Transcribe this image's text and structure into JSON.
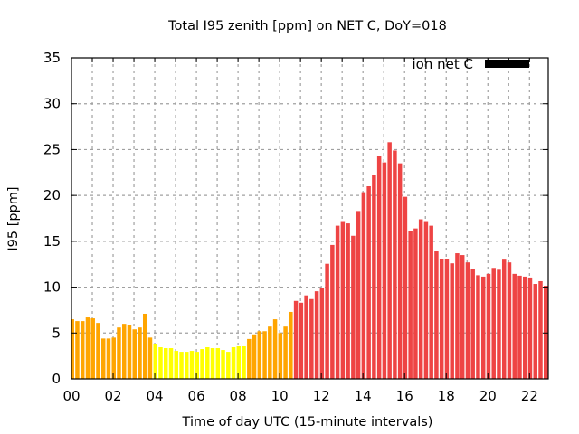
{
  "chart_data": {
    "type": "bar",
    "title": "Total I95 zenith [ppm] on NET C, DoY=018",
    "xlabel": "Time of day UTC (15-minute intervals)",
    "ylabel": "I95 [ppm]",
    "xlim": [
      0,
      22.9
    ],
    "ylim": [
      0,
      35
    ],
    "x_ticks": [
      0,
      2,
      4,
      6,
      8,
      10,
      12,
      14,
      16,
      18,
      20,
      22
    ],
    "x_tick_labels": [
      "00",
      "02",
      "04",
      "06",
      "08",
      "10",
      "12",
      "14",
      "16",
      "18",
      "20",
      "22"
    ],
    "y_ticks": [
      0,
      5,
      10,
      15,
      20,
      25,
      30,
      35
    ],
    "y_tick_labels": [
      "0",
      "5",
      "10",
      "15",
      "20",
      "25",
      "30",
      "35"
    ],
    "grid": true,
    "legend": {
      "position": "top-right",
      "entries": [
        {
          "label": "ion net C",
          "color": "#000000"
        }
      ]
    },
    "interval_hours": 0.25,
    "colors": {
      "orange": "#FFA500",
      "yellow": "#FFFF00",
      "red": "#EE4444"
    },
    "color_segments": [
      {
        "from_index": 0,
        "to_index": 15,
        "color": "orange"
      },
      {
        "from_index": 16,
        "to_index": 33,
        "color": "yellow"
      },
      {
        "from_index": 34,
        "to_index": 42,
        "color": "orange"
      },
      {
        "from_index": 43,
        "to_index": 91,
        "color": "red"
      }
    ],
    "values": [
      6.5,
      6.3,
      6.3,
      6.7,
      6.6,
      6.1,
      4.4,
      4.4,
      4.5,
      5.6,
      6.0,
      5.9,
      5.4,
      5.6,
      7.1,
      4.5,
      3.75,
      3.45,
      3.35,
      3.35,
      3.05,
      2.95,
      2.95,
      3.05,
      2.95,
      3.25,
      3.45,
      3.35,
      3.35,
      3.15,
      2.95,
      3.45,
      3.55,
      3.55,
      4.35,
      4.85,
      5.2,
      5.2,
      5.7,
      6.5,
      5.0,
      5.7,
      7.3,
      8.5,
      8.3,
      9.1,
      8.7,
      9.55,
      9.9,
      12.55,
      14.6,
      16.7,
      17.2,
      16.95,
      15.6,
      18.3,
      20.35,
      21.0,
      22.2,
      24.3,
      23.6,
      25.8,
      24.9,
      23.5,
      19.85,
      16.1,
      16.4,
      17.4,
      17.2,
      16.7,
      13.9,
      13.1,
      13.1,
      12.6,
      13.7,
      13.5,
      12.7,
      12.0,
      11.3,
      11.15,
      11.45,
      12.1,
      11.9,
      13.0,
      12.7,
      11.45,
      11.25,
      11.15,
      11.05,
      10.35,
      10.65,
      10.15
    ]
  }
}
